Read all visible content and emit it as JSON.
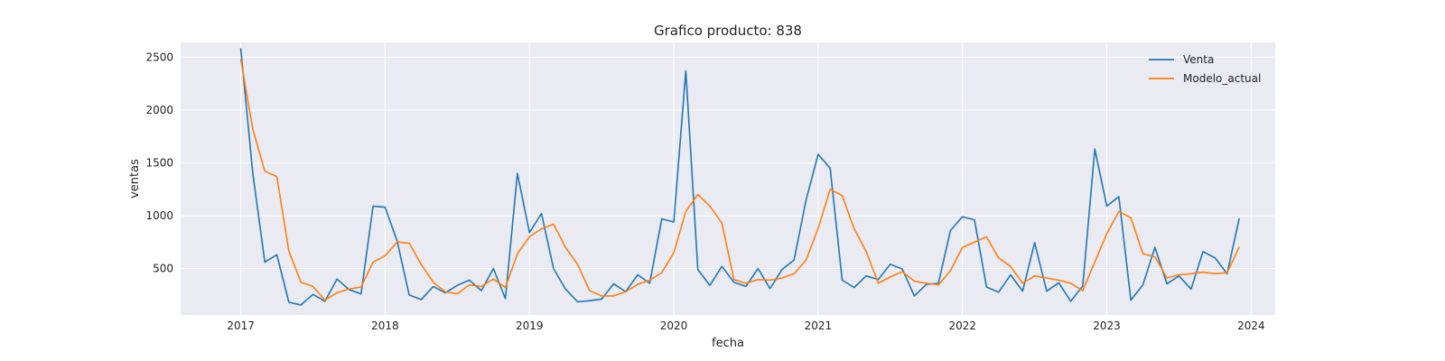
{
  "chart_data": {
    "type": "line",
    "title": "Grafico producto: 838",
    "xlabel": "fecha",
    "ylabel": "ventas",
    "x_start": "2017-01",
    "x_end": "2023-12",
    "x_ticks": [
      "2017",
      "2018",
      "2019",
      "2020",
      "2021",
      "2022",
      "2023",
      "2024"
    ],
    "y_ticks": [
      500,
      1000,
      1500,
      2000,
      2500
    ],
    "xlim": [
      "2016-08",
      "2024-03"
    ],
    "ylim": [
      60,
      2640
    ],
    "grid": true,
    "legend_position": "top-right",
    "series": [
      {
        "name": "Venta",
        "color": "#1f77b4",
        "values": [
          2580,
          1400,
          560,
          630,
          180,
          155,
          255,
          190,
          400,
          300,
          260,
          1090,
          1080,
          760,
          250,
          205,
          330,
          270,
          340,
          390,
          290,
          500,
          215,
          1400,
          840,
          1020,
          500,
          305,
          185,
          195,
          210,
          355,
          280,
          440,
          360,
          970,
          940,
          2370,
          490,
          340,
          520,
          370,
          330,
          500,
          310,
          490,
          580,
          1150,
          1580,
          1450,
          390,
          320,
          430,
          395,
          540,
          495,
          240,
          350,
          360,
          860,
          990,
          960,
          325,
          275,
          440,
          285,
          745,
          285,
          365,
          190,
          335,
          1630,
          1090,
          1180,
          200,
          345,
          700,
          355,
          430,
          305,
          660,
          600,
          450,
          970
        ]
      },
      {
        "name": "Modelo_actual",
        "color": "#ff7f0e",
        "values": [
          2480,
          1820,
          1420,
          1370,
          665,
          370,
          330,
          200,
          270,
          305,
          325,
          560,
          620,
          750,
          740,
          540,
          370,
          280,
          260,
          345,
          330,
          400,
          320,
          640,
          800,
          875,
          920,
          700,
          540,
          290,
          240,
          240,
          280,
          350,
          390,
          460,
          650,
          1040,
          1200,
          1090,
          930,
          395,
          360,
          395,
          390,
          410,
          450,
          580,
          880,
          1250,
          1190,
          875,
          660,
          360,
          420,
          470,
          380,
          360,
          345,
          480,
          700,
          750,
          800,
          600,
          520,
          360,
          430,
          410,
          390,
          360,
          290,
          560,
          830,
          1040,
          980,
          640,
          610,
          410,
          440,
          450,
          465,
          450,
          460,
          700
        ]
      }
    ]
  }
}
